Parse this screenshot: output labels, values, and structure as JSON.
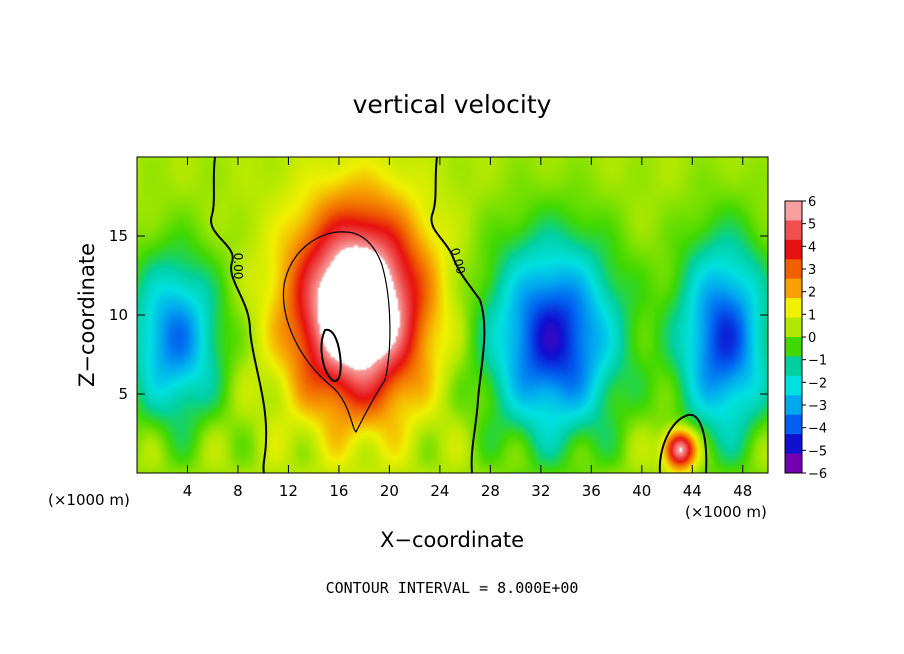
{
  "chart_data": {
    "type": "heatmap",
    "title": "vertical velocity",
    "xlabel": "X−coordinate",
    "ylabel": "Z−coordinate",
    "x_scale_note": "(×1000 m)",
    "y_scale_note": "(×1000 m)",
    "xlim": [
      0,
      50
    ],
    "ylim": [
      0,
      20
    ],
    "xticks": [
      4,
      8,
      12,
      16,
      20,
      24,
      28,
      32,
      36,
      40,
      44,
      48
    ],
    "yticks": [
      5,
      10,
      15
    ],
    "colorbar": {
      "range": [
        -6,
        6
      ],
      "labels": [
        "6",
        "5",
        "4",
        "3",
        "2",
        "1",
        "0",
        "−1",
        "−2",
        "−3",
        "−4",
        "−5",
        "−6"
      ],
      "colors": [
        "#f7a0a0",
        "#f05050",
        "#e81010",
        "#f06000",
        "#f8a000",
        "#f0f000",
        "#b0e800",
        "#40d800",
        "#00d0a0",
        "#00e0e0",
        "#00a8f0",
        "#0060f0",
        "#1010d0",
        "#7000b0"
      ]
    },
    "contour_labels": [
      "0.00",
      "0.00"
    ],
    "contour_interval_text": "CONTOUR INTERVAL = 8.000E+00",
    "features": [
      {
        "kind": "updraft",
        "x": 17.5,
        "z": 10.5,
        "sx": 5.0,
        "sz": 6.0,
        "peak": 8.5
      },
      {
        "kind": "updraft",
        "x": 43.0,
        "z": 1.5,
        "sx": 1.2,
        "sz": 1.2,
        "peak": 6.5
      },
      {
        "kind": "downdraft",
        "x": 33.0,
        "z": 8.5,
        "sx": 5.0,
        "sz": 6.0,
        "peak": -5.5
      },
      {
        "kind": "downdraft",
        "x": 46.5,
        "z": 8.5,
        "sx": 3.5,
        "sz": 6.0,
        "peak": -5.0
      },
      {
        "kind": "downdraft",
        "x": 3.0,
        "z": 8.5,
        "sx": 3.5,
        "sz": 5.0,
        "peak": -4.2
      }
    ]
  }
}
